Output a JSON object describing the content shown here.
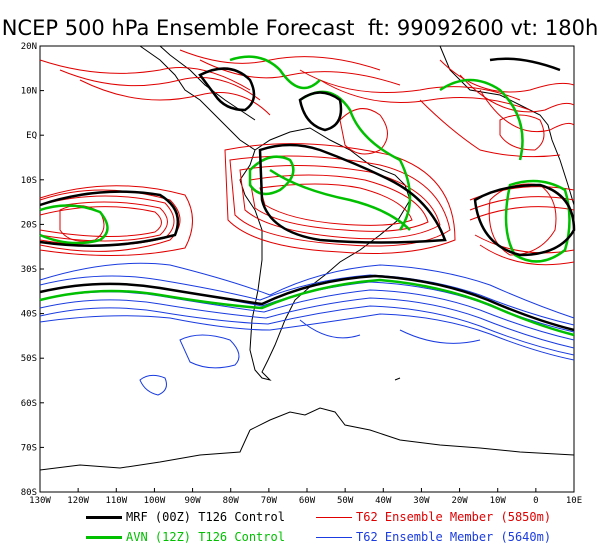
{
  "title": "NCEP 500 hPa Ensemble Forecast  ft: 99092600 vt: 180h",
  "lat_labels": [
    "20N",
    "10N",
    "EQ",
    "10S",
    "20S",
    "30S",
    "40S",
    "50S",
    "60S",
    "70S",
    "80S"
  ],
  "lon_labels": [
    "130W",
    "120W",
    "110W",
    "100W",
    "90W",
    "80W",
    "70W",
    "60W",
    "50W",
    "40W",
    "30W",
    "20W",
    "10W",
    "0",
    "10E"
  ],
  "legend": [
    {
      "label": "MRF (00Z) T126 Control",
      "color": "#000000",
      "width": 3
    },
    {
      "label": "T62 Ensemble Member (5850m)",
      "color": "#e00000",
      "width": 1,
      "text_color": "#e00000"
    },
    {
      "label": "AVN (12Z) T126 Control",
      "color": "#00c000",
      "width": 3,
      "text_color": "#00c000"
    },
    {
      "label": "T62 Ensemble Member (5640m)",
      "color": "#1a3ce0",
      "width": 1,
      "text_color": "#1a3ce0"
    }
  ],
  "colors": {
    "mrf": "#000000",
    "avn": "#00c000",
    "red": "#e00000",
    "blue": "#1a3ce0",
    "coast": "#000000"
  },
  "map_extent": {
    "lon": [
      -130,
      10
    ],
    "lat": [
      -80,
      20
    ]
  }
}
